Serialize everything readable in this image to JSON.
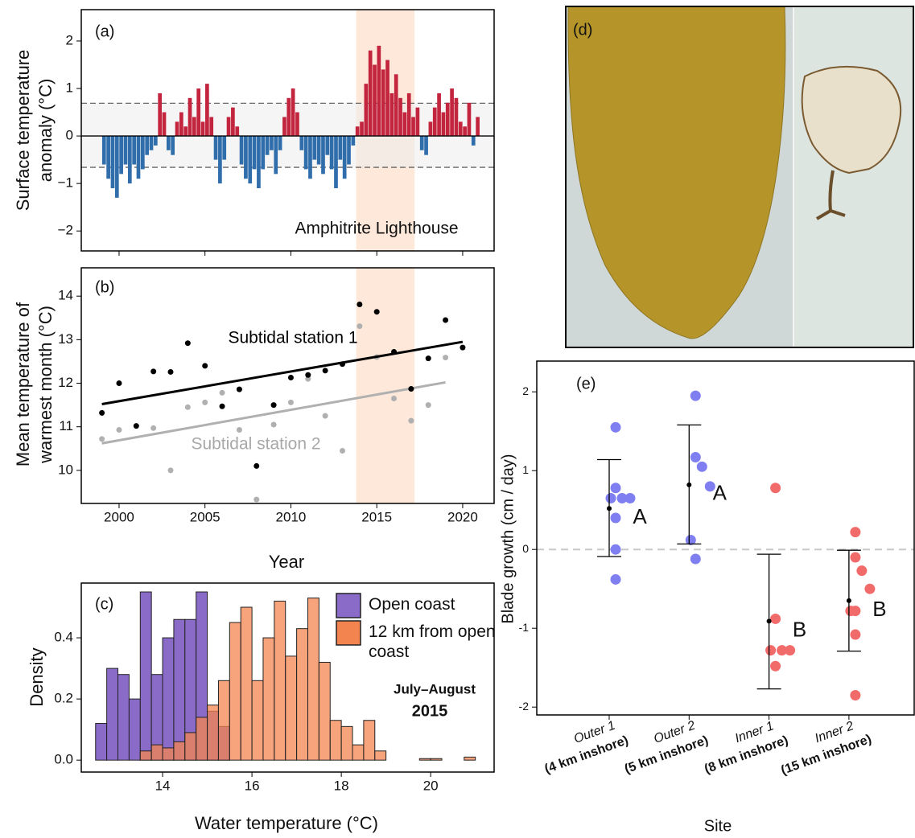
{
  "chart_data": [
    {
      "type": "bar",
      "panel_label": "(a)",
      "ylabel": [
        "Surface temperature",
        "anomaly (°C)"
      ],
      "annotation": "Amphitrite Lighthouse",
      "x": [
        1999.125,
        1999.375,
        1999.625,
        1999.875,
        2000.125,
        2000.375,
        2000.625,
        2000.875,
        2001.125,
        2001.375,
        2001.625,
        2001.875,
        2002.125,
        2002.375,
        2002.625,
        2002.875,
        2003.125,
        2003.375,
        2003.625,
        2003.875,
        2004.125,
        2004.375,
        2004.625,
        2004.875,
        2005.125,
        2005.375,
        2005.625,
        2005.875,
        2006.125,
        2006.375,
        2006.625,
        2006.875,
        2007.125,
        2007.375,
        2007.625,
        2007.875,
        2008.125,
        2008.375,
        2008.625,
        2008.875,
        2009.125,
        2009.375,
        2009.625,
        2009.875,
        2010.125,
        2010.375,
        2010.625,
        2010.875,
        2011.125,
        2011.375,
        2011.625,
        2011.875,
        2012.125,
        2012.375,
        2012.625,
        2012.875,
        2013.125,
        2013.375,
        2013.625,
        2013.875,
        2014.125,
        2014.375,
        2014.625,
        2014.875,
        2015.125,
        2015.375,
        2015.625,
        2015.875,
        2016.125,
        2016.375,
        2016.625,
        2016.875,
        2017.125,
        2017.375,
        2017.625,
        2017.875,
        2018.125,
        2018.375,
        2018.625,
        2018.875,
        2019.125,
        2019.375,
        2019.625,
        2019.875,
        2020.125,
        2020.375,
        2020.625,
        2020.875
      ],
      "values": [
        -0.6,
        -0.9,
        -1.1,
        -1.3,
        -0.8,
        -0.6,
        -1.0,
        -0.6,
        -0.9,
        -0.7,
        -0.4,
        -0.3,
        -0.2,
        0.9,
        0.5,
        -0.3,
        -0.4,
        0.3,
        0.5,
        0.2,
        0.8,
        0.4,
        1.0,
        0.3,
        1.1,
        0.4,
        -0.5,
        -1.0,
        -0.5,
        0.4,
        0.6,
        0.2,
        -0.6,
        -0.9,
        -1.0,
        -0.7,
        -1.1,
        -0.7,
        -0.4,
        -0.3,
        -0.8,
        -0.3,
        0.4,
        0.8,
        1.0,
        0.5,
        -0.3,
        -0.7,
        -0.9,
        -0.5,
        -0.6,
        -0.8,
        -0.4,
        -0.7,
        -1.1,
        -0.5,
        -0.9,
        -0.6,
        -0.2,
        0.2,
        0.3,
        1.1,
        1.8,
        1.5,
        1.9,
        1.4,
        1.6,
        0.9,
        1.3,
        0.8,
        0.5,
        0.9,
        0.4,
        0.6,
        -0.3,
        -0.4,
        0.3,
        0.6,
        0.9,
        0.5,
        0.7,
        1.0,
        0.8,
        0.3,
        0.2,
        0.7,
        -0.2,
        0.4
      ],
      "positive_color": "#c4253e",
      "negative_color": "#2f6dab",
      "xlim": [
        1997.8,
        2021.83
      ],
      "ylim": [
        -2.42,
        2.66
      ],
      "xticks": [
        2000,
        2005,
        2010,
        2015,
        2020
      ],
      "yticks": [
        {
          "value": -2,
          "label": "−2"
        },
        {
          "value": -1,
          "label": "−1"
        },
        0,
        1,
        2
      ],
      "threshold_lines": [
        0.69,
        -0.66
      ],
      "highlight": [
        2013.8,
        2017.2
      ]
    },
    {
      "type": "scatter",
      "panel_label": "(b)",
      "ylabel": [
        "Mean temperature of",
        "warmest month (°C)"
      ],
      "xlabel": "Year",
      "series": [
        {
          "name": "Subtidal station 1",
          "color": "#000000",
          "x": [
            1999,
            2000,
            2001,
            2002,
            2003,
            2004,
            2005,
            2006,
            2007,
            2008,
            2009,
            2010,
            2011,
            2012,
            2013,
            2014,
            2015,
            2016,
            2017,
            2018,
            2019,
            2020
          ],
          "values": [
            11.32,
            12.0,
            11.02,
            12.27,
            12.26,
            12.92,
            12.4,
            11.47,
            11.86,
            10.1,
            11.5,
            12.13,
            12.19,
            12.29,
            12.44,
            13.81,
            13.64,
            12.72,
            11.87,
            12.57,
            13.45,
            12.82
          ],
          "trend": {
            "x": [
              1999,
              2020
            ],
            "y": [
              11.52,
              12.95
            ]
          }
        },
        {
          "name": "Subtidal station 2",
          "color": "#b0b0b0",
          "x": [
            1999,
            2000,
            2002,
            2003,
            2004,
            2005,
            2006,
            2007,
            2008,
            2009,
            2010,
            2011,
            2012,
            2013,
            2014,
            2015,
            2016,
            2017,
            2018,
            2019
          ],
          "values": [
            10.72,
            10.93,
            10.97,
            10.0,
            11.45,
            11.56,
            11.78,
            10.93,
            9.33,
            11.05,
            11.56,
            12.1,
            11.25,
            10.45,
            13.31,
            12.6,
            11.65,
            11.14,
            11.5,
            12.59
          ],
          "trend": {
            "x": [
              1999,
              2019
            ],
            "y": [
              10.62,
              12.02
            ]
          }
        }
      ],
      "xlim": [
        1997.8,
        2021.83
      ],
      "ylim": [
        9.24,
        14.65
      ],
      "xticks": [
        2000,
        2005,
        2010,
        2015,
        2020
      ],
      "yticks": [
        10,
        11,
        12,
        13,
        14
      ],
      "highlight": [
        2013.8,
        2017.2
      ]
    },
    {
      "type": "histogram",
      "panel_label": "(c)",
      "xlabel": "Water temperature (°C)",
      "ylabel": "Density",
      "annotation": [
        "July–August",
        "2015"
      ],
      "bins": [
        12.5,
        12.75,
        13,
        13.25,
        13.5,
        13.75,
        14,
        14.25,
        14.5,
        14.75,
        15,
        15.25,
        15.5,
        15.75,
        16,
        16.25,
        16.5,
        16.75,
        17,
        17.25,
        17.5,
        17.75,
        18,
        18.25,
        18.5,
        18.75,
        19,
        19.25,
        19.5,
        19.75,
        20,
        20.25,
        20.5,
        20.75,
        21
      ],
      "series": [
        {
          "name": "Open coast",
          "color": "#8a6cc8",
          "values": [
            0.12,
            0.3,
            0.28,
            0.2,
            0.55,
            0.28,
            0.4,
            0.46,
            0.46,
            0.55,
            0.16,
            0.11,
            0,
            0,
            0,
            0,
            0,
            0,
            0,
            0,
            0,
            0,
            0,
            0,
            0,
            0,
            0,
            0,
            0,
            0,
            0,
            0,
            0,
            0
          ]
        },
        {
          "name": "12 km from open coast",
          "color": "#f4844f",
          "values": [
            0,
            0,
            0,
            0,
            0.03,
            0.05,
            0.04,
            0.06,
            0.09,
            0.14,
            0.18,
            0.26,
            0.45,
            0.5,
            0.26,
            0.4,
            0.52,
            0.34,
            0.43,
            0.53,
            0.32,
            0.13,
            0.11,
            0.05,
            0.13,
            0.03,
            0,
            0,
            0,
            0.005,
            0.005,
            0,
            0,
            0.01
          ]
        }
      ],
      "legend": "upper right",
      "xlim": [
        12.18,
        21.42
      ],
      "ylim": [
        -0.039,
        0.579
      ],
      "xticks": [
        14,
        16,
        18,
        20
      ],
      "yticks": [
        {
          "value": 0,
          "label": "0.0"
        },
        {
          "value": 0.2,
          "label": "0.2"
        },
        {
          "value": 0.4,
          "label": "0.4"
        }
      ]
    },
    {
      "type": "strip",
      "panel_label": "(e)",
      "ylabel": "Blade growth (cm / day)",
      "xlabel": "Site",
      "categories": [
        "Outer 1",
        "Outer 2",
        "Inner 1",
        "Inner 2"
      ],
      "subtitles": [
        "(4 km inshore)",
        "(5 km inshore)",
        "(8 km inshore)",
        "(15 km inshore)"
      ],
      "colors": [
        "#7f7ff2",
        "#7f7ff2",
        "#f26b6b",
        "#f26b6b"
      ],
      "points": [
        [
          1.55,
          0.78,
          0.65,
          0.65,
          0.65,
          0.4,
          0.0,
          -0.38
        ],
        [
          1.95,
          1.17,
          1.05,
          0.8,
          0.12,
          -0.12
        ],
        [
          0.78,
          -0.88,
          -1.28,
          -1.28,
          -1.28,
          -1.48
        ],
        [
          0.22,
          -0.1,
          -0.27,
          -0.5,
          -0.78,
          -0.78,
          -1.08,
          -1.85
        ]
      ],
      "means": [
        0.52,
        0.82,
        -0.91,
        -0.65
      ],
      "ci": [
        [
          -0.09,
          1.14
        ],
        [
          0.07,
          1.58
        ],
        [
          -1.77,
          -0.06
        ],
        [
          -1.29,
          -0.01
        ]
      ],
      "letters": [
        "A",
        "A",
        "B",
        "B"
      ],
      "hline": 0,
      "ylim": [
        -2.1,
        2.39
      ],
      "yticks": [
        -2,
        -1,
        0,
        1,
        2
      ]
    }
  ],
  "photo_panel": {
    "panel_label": "(d)"
  }
}
